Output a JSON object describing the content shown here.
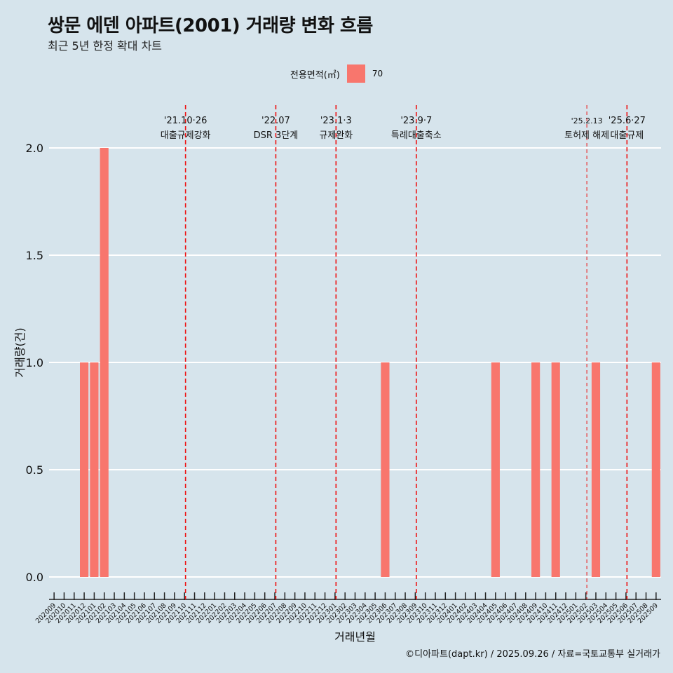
{
  "chart_data": {
    "type": "bar",
    "title": "쌍문 에덴 아파트(2001) 거래량 변화 흐름",
    "subtitle": "최근 5년 한정 확대 차트",
    "xlabel": "거래년월",
    "ylabel": "거래량(건)",
    "ylim": [
      0,
      2
    ],
    "yticks": [
      "0.0",
      "0.5",
      "1.0",
      "1.5",
      "2.0"
    ],
    "legend": {
      "title": "전용면적(㎡)",
      "entries": [
        "70"
      ],
      "color": "#f8766d",
      "position": "top"
    },
    "categories": [
      "202009",
      "202010",
      "202011",
      "202012",
      "202101",
      "202102",
      "202103",
      "202104",
      "202105",
      "202106",
      "202107",
      "202108",
      "202109",
      "202110",
      "202111",
      "202112",
      "202201",
      "202202",
      "202203",
      "202204",
      "202205",
      "202206",
      "202207",
      "202208",
      "202209",
      "202210",
      "202211",
      "202212",
      "202301",
      "202302",
      "202303",
      "202304",
      "202305",
      "202306",
      "202307",
      "202308",
      "202309",
      "202310",
      "202311",
      "202312",
      "202401",
      "202402",
      "202403",
      "202404",
      "202405",
      "202406",
      "202407",
      "202408",
      "202409",
      "202410",
      "202411",
      "202412",
      "202501",
      "202502",
      "202503",
      "202504",
      "202505",
      "202506",
      "202507",
      "202508",
      "202509"
    ],
    "values": [
      0,
      0,
      0,
      1,
      1,
      2,
      0,
      0,
      0,
      0,
      0,
      0,
      0,
      0,
      0,
      0,
      0,
      0,
      0,
      0,
      0,
      0,
      0,
      0,
      0,
      0,
      0,
      0,
      0,
      0,
      0,
      0,
      0,
      1,
      0,
      0,
      0,
      0,
      0,
      0,
      0,
      0,
      0,
      0,
      1,
      0,
      0,
      0,
      1,
      0,
      1,
      0,
      0,
      0,
      1,
      0,
      0,
      0,
      0,
      0,
      1
    ],
    "annotations": [
      {
        "date": "'21.10·26",
        "label": "대출규제강화",
        "at": 13.1
      },
      {
        "date": "'22.07",
        "label": "DSR 3단계",
        "at": 22.1
      },
      {
        "date": "'23.1·3",
        "label": "규제완화",
        "at": 28.1
      },
      {
        "date": "'23.9·7",
        "label": "특례대출축소",
        "at": 36.1
      },
      {
        "date": "'25.2.13",
        "label": "토허제 해제",
        "at": 53.1,
        "thin": true
      },
      {
        "date": "'25.6·27",
        "label": "대출규제",
        "at": 57.1
      }
    ]
  },
  "caption": "©디아파트(dapt.kr) / 2025.09.26 / 자료=국토교통부 실거래가"
}
